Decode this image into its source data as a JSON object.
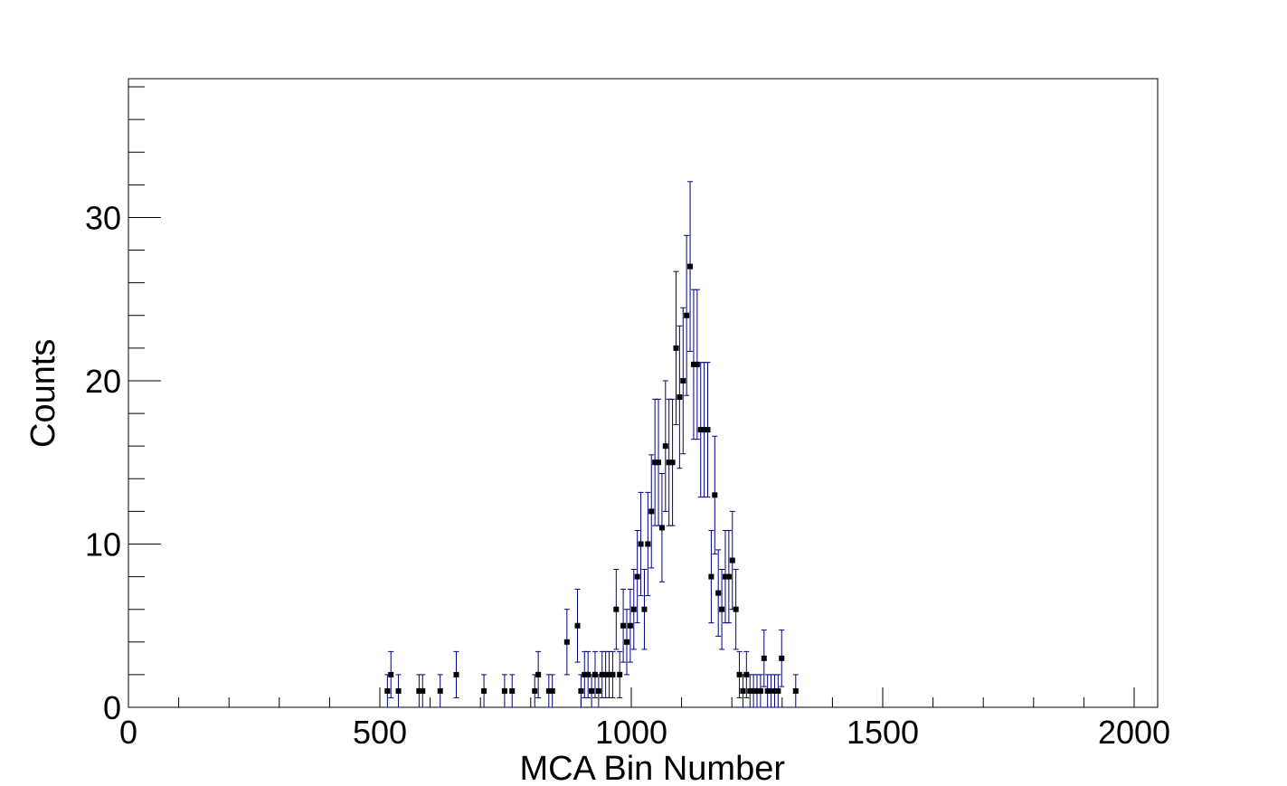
{
  "chart_data": {
    "type": "scatter",
    "title": "",
    "xlabel": "MCA Bin Number",
    "ylabel": "Counts",
    "xlim": [
      0,
      2050
    ],
    "ylim": [
      0,
      38.5
    ],
    "x_ticks": [
      0,
      500,
      1000,
      1500,
      2000
    ],
    "x_tick_labels": [
      "0",
      "500",
      "1000",
      "1500",
      "2000"
    ],
    "y_ticks": [
      0,
      10,
      20,
      30
    ],
    "y_tick_labels": [
      "0",
      "10",
      "20",
      "30"
    ],
    "grid": false,
    "legend": "none",
    "marker_color": "#000000",
    "error_bar_color": "#000080",
    "error_bars": "sqrt(counts)",
    "series": [
      {
        "x": [
          515,
          522,
          537,
          578,
          585,
          620,
          652,
          707,
          748,
          763,
          808,
          815,
          836,
          843,
          872,
          893,
          900,
          907,
          914,
          921,
          928,
          935,
          942,
          949,
          956,
          963,
          970,
          977,
          984,
          991,
          998,
          1005,
          1012,
          1019,
          1026,
          1033,
          1040,
          1047,
          1054,
          1061,
          1068,
          1075,
          1082,
          1089,
          1096,
          1103,
          1110,
          1117,
          1124,
          1131,
          1138,
          1145,
          1152,
          1159,
          1166,
          1173,
          1180,
          1187,
          1194,
          1201,
          1208,
          1215,
          1222,
          1229,
          1236,
          1243,
          1250,
          1257,
          1264,
          1271,
          1278,
          1285,
          1292,
          1299,
          1327
        ],
        "y": [
          1,
          2,
          1,
          1,
          1,
          1,
          2,
          1,
          1,
          1,
          1,
          2,
          1,
          1,
          4,
          5,
          1,
          2,
          2,
          1,
          2,
          1,
          2,
          2,
          2,
          2,
          6,
          2,
          5,
          4,
          5,
          6,
          8,
          10,
          6,
          10,
          12,
          15,
          15,
          11,
          16,
          15,
          15,
          22,
          19,
          20,
          24,
          27,
          21,
          21,
          17,
          17,
          17,
          8,
          13,
          7,
          6,
          8,
          8,
          9,
          6,
          2,
          1,
          2,
          1,
          1,
          1,
          1,
          3,
          1,
          1,
          1,
          1,
          3,
          1
        ]
      }
    ]
  }
}
